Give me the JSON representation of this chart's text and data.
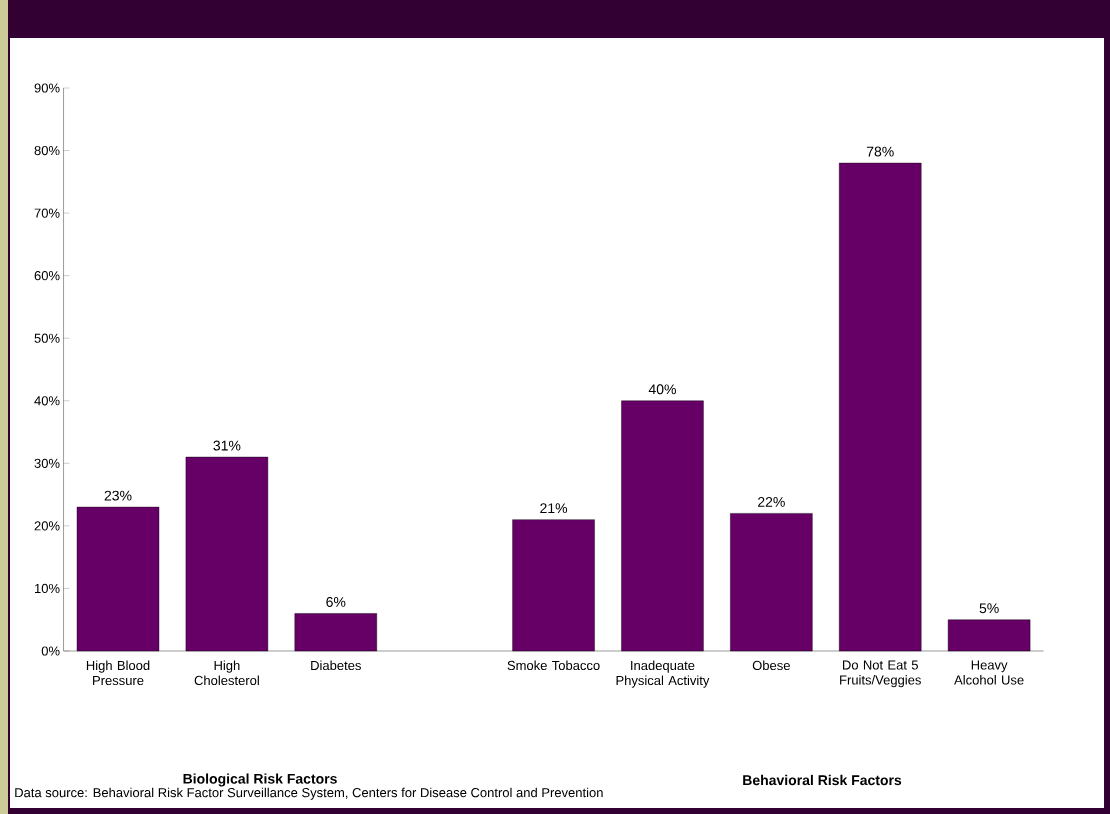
{
  "chart_data": {
    "type": "bar",
    "categories": [
      "High Blood Pressure",
      "High Cholesterol",
      "Diabetes",
      null,
      "Smoke Tobacco",
      "Inadequate Physical Activity",
      "Obese",
      "Do Not Eat 5 Fruits/Veggies",
      "Heavy Alcohol Use"
    ],
    "values": [
      23,
      31,
      6,
      null,
      21,
      40,
      22,
      78,
      5
    ],
    "value_labels": [
      "23%",
      "31%",
      "6%",
      null,
      "21%",
      "40%",
      "22%",
      "78%",
      "5%"
    ],
    "color": "#660066",
    "ylim": [
      0,
      90
    ],
    "yticks": [
      {
        "value": 0,
        "label": "0%"
      },
      {
        "value": 10,
        "label": "10%"
      },
      {
        "value": 20,
        "label": "20%"
      },
      {
        "value": 30,
        "label": "30%"
      },
      {
        "value": 40,
        "label": "40%"
      },
      {
        "value": 50,
        "label": "50%"
      },
      {
        "value": 60,
        "label": "60%"
      },
      {
        "value": 70,
        "label": "70%"
      },
      {
        "value": 80,
        "label": "80%"
      },
      {
        "value": 90,
        "label": "90%"
      }
    ],
    "annotations": [
      "Biological Risk Factors",
      "Behavioral Risk Factors",
      "Data source: Behavioral Risk Factor Surveillance System, Centers for Disease Control and Prevention"
    ]
  }
}
